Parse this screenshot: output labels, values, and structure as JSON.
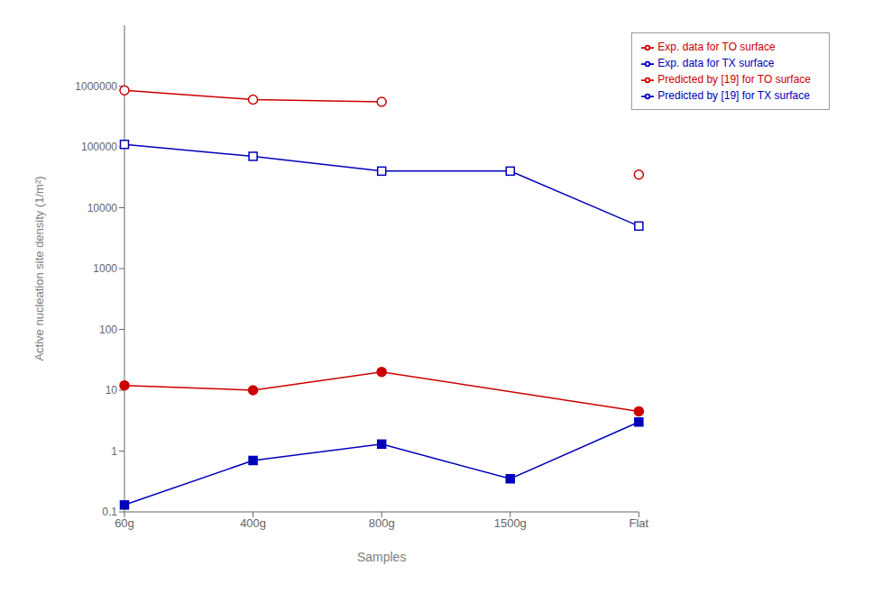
{
  "chart_data": {
    "type": "line",
    "categories": [
      "60g",
      "400g",
      "800g",
      "1500g",
      "Flat"
    ],
    "xlabel": "Samples",
    "ylabel": "Active nucleation site density (1/m²)",
    "log": "y",
    "ylim": [
      0.1,
      10000000
    ],
    "yticks": [
      0.1,
      1,
      10,
      100,
      1000,
      10000,
      100000,
      1000000
    ],
    "grid": false,
    "legend": "upper right",
    "series": [
      {
        "name": "Predicted by [19] for TX surface",
        "color": "#0000BB",
        "marker": "filled-square",
        "values": [
          0.13,
          0.7,
          1.3,
          0.35,
          3.0
        ]
      },
      {
        "name": "Exp. data for TX surface",
        "color": "#0000BB",
        "marker": "open-square",
        "values": [
          110000,
          70000,
          40000,
          40000,
          5000
        ]
      },
      {
        "name": "Predicted by [19] for TO surface",
        "color": "#CC0000",
        "marker": "filled-circle",
        "x": [
          "60g",
          "400g",
          "800g",
          "Flat"
        ],
        "values": [
          12,
          10,
          20,
          4.5
        ]
      },
      {
        "name": "Exp. data for TO surface",
        "color": "#CC0000",
        "marker": "open-circle",
        "values": [
          850000,
          600000,
          550000,
          null,
          35000
        ]
      }
    ]
  }
}
